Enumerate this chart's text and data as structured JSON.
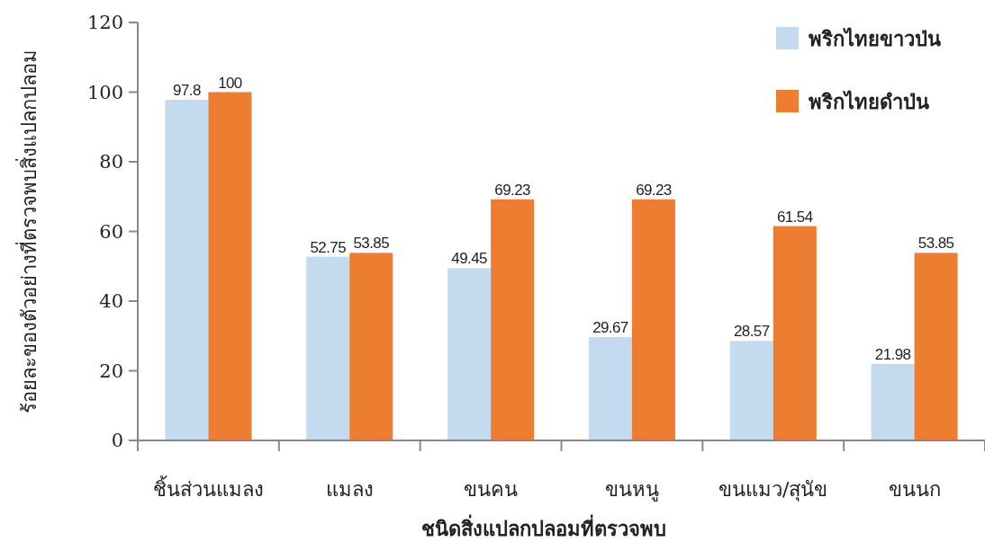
{
  "chart_data": {
    "type": "bar",
    "xlabel": "ชนิดสิ่งแปลกปลอมที่ตรวจพบ",
    "ylabel": "ร้อยละของตัวอย่างที่ตรวจพบสิ่งแปลกปลอม",
    "categories": [
      "ชิ้นส่วนแมลง",
      "แมลง",
      "ขนคน",
      "ขนหนู",
      "ขนแมว/สุนัข",
      "ขนนก"
    ],
    "series": [
      {
        "name": "พริกไทยขาวป่น",
        "color": "#c3daef",
        "values": [
          97.8,
          52.75,
          49.45,
          29.67,
          28.57,
          21.98
        ]
      },
      {
        "name": "พริกไทยดำป่น",
        "color": "#ed7d31",
        "values": [
          100,
          53.85,
          69.23,
          69.23,
          61.54,
          53.85
        ]
      }
    ],
    "ylim": [
      0,
      120
    ],
    "yticks": [
      0,
      20,
      40,
      60,
      80,
      100,
      120
    ],
    "data_labels": true,
    "legend": "top right",
    "grid": false
  }
}
